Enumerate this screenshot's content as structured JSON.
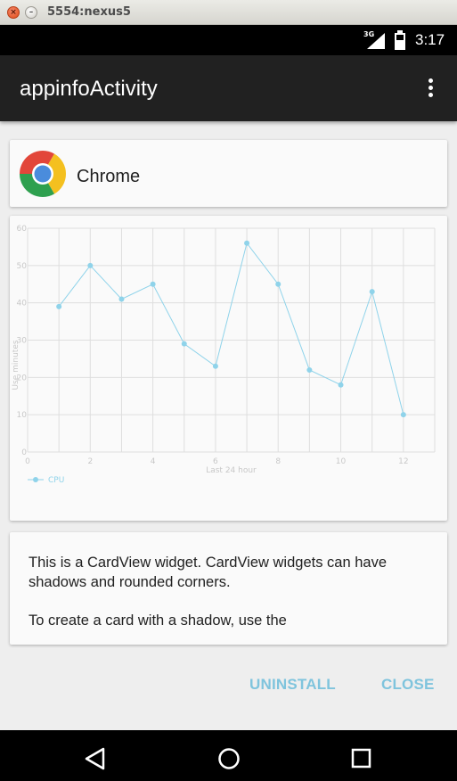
{
  "window": {
    "title": "5554:nexus5",
    "close_glyph": "×",
    "minimize_glyph": "–"
  },
  "status_bar": {
    "network": "3G",
    "time": "3:17"
  },
  "app_bar": {
    "title": "appinfoActivity",
    "overflow_icon": "more-vert-icon"
  },
  "app_card": {
    "name": "Chrome",
    "icon": "chrome-icon"
  },
  "chart_data": {
    "type": "line",
    "x": [
      1,
      2,
      3,
      4,
      5,
      6,
      7,
      8,
      9,
      10,
      11,
      12
    ],
    "series": [
      {
        "name": "CPU",
        "values": [
          39,
          50,
          41,
          45,
          29,
          23,
          56,
          45,
          22,
          18,
          43,
          10
        ]
      }
    ],
    "xlabel": "Last 24 hour",
    "ylabel": "Use minutes",
    "xlim": [
      0,
      13
    ],
    "ylim": [
      0,
      60
    ],
    "xticks": [
      0,
      2,
      4,
      6,
      8,
      10,
      12
    ],
    "yticks": [
      0,
      10,
      20,
      30,
      40,
      50,
      60
    ],
    "grid": true,
    "legend": "bottom-left",
    "color": "#8fd3ea"
  },
  "info_card": {
    "paragraph1": "This is a CardView widget. CardView widgets can have shadows and rounded corners.",
    "paragraph2": "To create a card with a shadow, use the"
  },
  "actions": {
    "uninstall": "UNINSTALL",
    "close": "CLOSE"
  },
  "nav_bar": {
    "back": "back-icon",
    "home": "home-icon",
    "recents": "recents-icon"
  }
}
